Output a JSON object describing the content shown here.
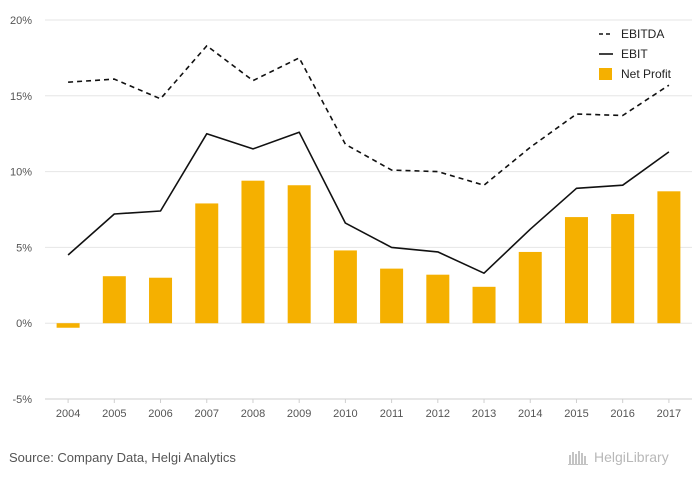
{
  "chart_data": {
    "type": "bar",
    "categories": [
      "2004",
      "2005",
      "2006",
      "2007",
      "2008",
      "2009",
      "2010",
      "2011",
      "2012",
      "2013",
      "2014",
      "2015",
      "2016",
      "2017"
    ],
    "series": [
      {
        "name": "EBITDA",
        "kind": "line",
        "style": "dashed",
        "color": "#111111",
        "values": [
          15.9,
          16.1,
          14.8,
          18.3,
          16.0,
          17.5,
          11.8,
          10.1,
          10.0,
          9.1,
          11.6,
          13.8,
          13.7,
          15.7
        ]
      },
      {
        "name": "EBIT",
        "kind": "line",
        "style": "solid",
        "color": "#111111",
        "values": [
          4.5,
          7.2,
          7.4,
          12.5,
          11.5,
          12.6,
          6.6,
          5.0,
          4.7,
          3.3,
          6.2,
          8.9,
          9.1,
          11.3
        ]
      },
      {
        "name": "Net Profit",
        "kind": "bar",
        "color": "#f5b000",
        "values": [
          -0.3,
          3.1,
          3.0,
          7.9,
          9.4,
          9.1,
          4.8,
          3.6,
          3.2,
          2.4,
          4.7,
          7.0,
          7.2,
          8.7
        ]
      }
    ],
    "yticks": [
      "20%",
      "15%",
      "10%",
      "5%",
      "0%",
      "-5%"
    ],
    "ytick_values": [
      20,
      15,
      10,
      5,
      0,
      -5
    ],
    "ylim": [
      -5,
      20
    ],
    "grid": true,
    "legend_position": "top-right",
    "title": "",
    "xlabel": "",
    "ylabel": ""
  },
  "footer": {
    "source": "Source: Company Data, Helgi Analytics",
    "brand": "HelgiLibrary"
  }
}
